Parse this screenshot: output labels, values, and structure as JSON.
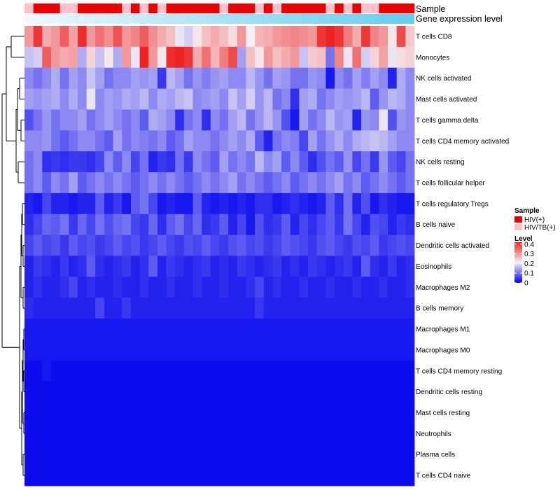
{
  "chart_data": {
    "type": "heatmap",
    "annotation_labels": {
      "sample": "Sample",
      "gene_expression": "Gene expression level"
    },
    "sample_legend": {
      "title": "Sample",
      "entries": [
        {
          "label": "HIV(+)",
          "color": "#ee0000"
        },
        {
          "label": "HIV/TB(+)",
          "color": "#ffc0cb"
        }
      ]
    },
    "level_legend": {
      "title": "Level",
      "ticks": [
        "0.4",
        "0.3",
        "0.2",
        "0.1",
        "0"
      ],
      "tick_values": [
        0.4,
        0.3,
        0.2,
        0.1,
        0
      ],
      "range": [
        0,
        0.42
      ],
      "colors": {
        "low": "#0000ee",
        "mid": "#f5f0f5",
        "high": "#ee2222"
      }
    },
    "sample_groups": [
      1,
      0,
      0,
      0,
      1,
      1,
      0,
      0,
      0,
      0,
      0,
      1,
      0,
      1,
      0,
      1,
      0,
      0,
      0,
      0,
      0,
      0,
      1,
      0,
      0,
      0,
      1,
      0,
      1,
      0,
      0,
      0,
      0,
      0,
      1,
      0,
      1,
      0,
      1,
      1,
      0,
      0,
      0,
      0
    ],
    "gene_expression_range": [
      0,
      1
    ],
    "rows": [
      "T cells CD8",
      "Monocytes",
      "NK cells activated",
      "Mast cells activated",
      "T cells gamma delta",
      "T cells CD4 memory activated",
      "NK cells resting",
      "T cells follicular helper",
      "T cells regulatory  Tregs",
      "B cells naive",
      "Dendritic cells activated",
      "Eosinophils",
      "Macrophages M2",
      "B cells memory",
      "Macrophages M1",
      "Macrophages M0",
      "T cells CD4 memory resting",
      "Dendritic cells resting",
      "Mast cells resting",
      "Neutrophils",
      "Plasma cells",
      "T cells CD4 naive"
    ],
    "values": [
      [
        0.3,
        0.4,
        0.28,
        0.3,
        0.36,
        0.29,
        0.41,
        0.3,
        0.34,
        0.31,
        0.37,
        0.3,
        0.32,
        0.36,
        0.31,
        0.28,
        0.26,
        0.2,
        0.18,
        0.22,
        0.26,
        0.28,
        0.26,
        0.23,
        0.3,
        0.21,
        0.27,
        0.28,
        0.3,
        0.31,
        0.32,
        0.31,
        0.3,
        0.4,
        0.42,
        0.4,
        0.33,
        0.28,
        0.4,
        0.32,
        0.3,
        0.22,
        0.38,
        0.25
      ],
      [
        0.17,
        0.18,
        0.36,
        0.3,
        0.28,
        0.29,
        0.15,
        0.24,
        0.17,
        0.22,
        0.15,
        0.3,
        0.2,
        0.42,
        0.3,
        0.22,
        0.41,
        0.42,
        0.4,
        0.28,
        0.34,
        0.27,
        0.33,
        0.38,
        0.14,
        0.26,
        0.22,
        0.3,
        0.26,
        0.28,
        0.3,
        0.17,
        0.25,
        0.26,
        0.1,
        0.32,
        0.2,
        0.34,
        0.18,
        0.24,
        0.29,
        0.2,
        0.23,
        0.24
      ],
      [
        0.12,
        0.1,
        0.12,
        0.15,
        0.1,
        0.14,
        0.12,
        0.17,
        0.14,
        0.1,
        0.12,
        0.12,
        0.14,
        0.13,
        0.14,
        0.05,
        0.16,
        0.14,
        0.1,
        0.13,
        0.11,
        0.13,
        0.14,
        0.12,
        0.12,
        0.16,
        0.13,
        0.1,
        0.14,
        0.13,
        0.1,
        0.1,
        0.13,
        0.12,
        0.02,
        0.12,
        0.1,
        0.14,
        0.11,
        0.14,
        0.12,
        0.03,
        0.15,
        0.12
      ],
      [
        0.14,
        0.13,
        0.14,
        0.15,
        0.12,
        0.15,
        0.12,
        0.2,
        0.12,
        0.14,
        0.13,
        0.15,
        0.14,
        0.16,
        0.12,
        0.15,
        0.14,
        0.16,
        0.17,
        0.12,
        0.13,
        0.14,
        0.12,
        0.17,
        0.14,
        0.18,
        0.13,
        0.16,
        0.1,
        0.12,
        0.04,
        0.14,
        0.15,
        0.1,
        0.12,
        0.14,
        0.13,
        0.14,
        0.16,
        0.08,
        0.13,
        0.16,
        0.15,
        0.12
      ],
      [
        0.07,
        0.1,
        0.13,
        0.1,
        0.12,
        0.12,
        0.14,
        0.1,
        0.12,
        0.14,
        0.12,
        0.1,
        0.12,
        0.08,
        0.15,
        0.14,
        0.12,
        0.04,
        0.1,
        0.12,
        0.04,
        0.12,
        0.1,
        0.14,
        0.16,
        0.1,
        0.13,
        0.16,
        0.13,
        0.07,
        0.02,
        0.14,
        0.1,
        0.12,
        0.16,
        0.13,
        0.14,
        0.03,
        0.13,
        0.12,
        0.2,
        0.07,
        0.13,
        0.12
      ],
      [
        0.12,
        0.12,
        0.13,
        0.1,
        0.08,
        0.1,
        0.12,
        0.12,
        0.1,
        0.08,
        0.14,
        0.1,
        0.12,
        0.11,
        0.1,
        0.12,
        0.08,
        0.1,
        0.14,
        0.12,
        0.12,
        0.1,
        0.12,
        0.14,
        0.12,
        0.15,
        0.08,
        0.03,
        0.1,
        0.12,
        0.11,
        0.06,
        0.14,
        0.1,
        0.13,
        0.15,
        0.12,
        0.15,
        0.16,
        0.17,
        0.16,
        0.14,
        0.12,
        0.12
      ],
      [
        0.1,
        0.12,
        0.04,
        0.05,
        0.04,
        0.05,
        0.05,
        0.04,
        0.06,
        0.12,
        0.08,
        0.12,
        0.06,
        0.1,
        0.03,
        0.05,
        0.04,
        0.1,
        0.05,
        0.12,
        0.1,
        0.08,
        0.14,
        0.1,
        0.12,
        0.1,
        0.16,
        0.12,
        0.14,
        0.08,
        0.12,
        0.08,
        0.04,
        0.07,
        0.1,
        0.08,
        0.13,
        0.06,
        0.1,
        0.05,
        0.13,
        0.08,
        0.06,
        0.1
      ],
      [
        0.1,
        0.12,
        0.08,
        0.12,
        0.1,
        0.14,
        0.08,
        0.1,
        0.12,
        0.1,
        0.12,
        0.1,
        0.08,
        0.1,
        0.12,
        0.1,
        0.12,
        0.1,
        0.08,
        0.1,
        0.12,
        0.1,
        0.12,
        0.14,
        0.1,
        0.12,
        0.1,
        0.08,
        0.1,
        0.12,
        0.08,
        0.1,
        0.12,
        0.1,
        0.12,
        0.14,
        0.1,
        0.12,
        0.08,
        0.1,
        0.12,
        0.1,
        0.08,
        0.1
      ],
      [
        0.03,
        0.02,
        0.06,
        0.03,
        0.03,
        0.02,
        0.03,
        0.03,
        0.08,
        0.03,
        0.05,
        0.02,
        0.08,
        0.1,
        0.06,
        0.02,
        0.03,
        0.02,
        0.02,
        0.08,
        0.03,
        0.02,
        0.03,
        0.02,
        0.03,
        0.02,
        0.04,
        0.04,
        0.02,
        0.03,
        0.04,
        0.03,
        0.02,
        0.03,
        0.08,
        0.04,
        0.1,
        0.03,
        0.07,
        0.02,
        0.04,
        0.03,
        0.02,
        0.02
      ],
      [
        0.04,
        0.06,
        0.09,
        0.08,
        0.1,
        0.05,
        0.09,
        0.06,
        0.1,
        0.07,
        0.09,
        0.1,
        0.06,
        0.05,
        0.09,
        0.04,
        0.08,
        0.1,
        0.06,
        0.09,
        0.04,
        0.05,
        0.08,
        0.03,
        0.06,
        0.02,
        0.07,
        0.04,
        0.05,
        0.08,
        0.03,
        0.06,
        0.04,
        0.06,
        0.08,
        0.05,
        0.1,
        0.06,
        0.03,
        0.07,
        0.06,
        0.03,
        0.05,
        0.04
      ],
      [
        0.06,
        0.08,
        0.06,
        0.07,
        0.05,
        0.08,
        0.06,
        0.07,
        0.05,
        0.06,
        0.08,
        0.06,
        0.07,
        0.05,
        0.06,
        0.08,
        0.06,
        0.05,
        0.07,
        0.06,
        0.08,
        0.06,
        0.05,
        0.07,
        0.08,
        0.06,
        0.07,
        0.05,
        0.06,
        0.08,
        0.07,
        0.06,
        0.05,
        0.07,
        0.08,
        0.06,
        0.05,
        0.07,
        0.06,
        0.08,
        0.05,
        0.06,
        0.07,
        0.06
      ],
      [
        0.03,
        0.05,
        0.04,
        0.03,
        0.05,
        0.03,
        0.04,
        0.08,
        0.04,
        0.03,
        0.04,
        0.05,
        0.03,
        0.04,
        0.08,
        0.03,
        0.05,
        0.04,
        0.03,
        0.04,
        0.05,
        0.03,
        0.04,
        0.03,
        0.05,
        0.04,
        0.03,
        0.04,
        0.05,
        0.03,
        0.04,
        0.03,
        0.05,
        0.04,
        0.03,
        0.04,
        0.05,
        0.03,
        0.08,
        0.04,
        0.03,
        0.05,
        0.03,
        0.04
      ],
      [
        0.03,
        0.04,
        0.03,
        0.03,
        0.04,
        0.06,
        0.03,
        0.04,
        0.03,
        0.03,
        0.04,
        0.03,
        0.03,
        0.04,
        0.03,
        0.03,
        0.04,
        0.03,
        0.03,
        0.04,
        0.03,
        0.03,
        0.04,
        0.03,
        0.03,
        0.04,
        0.06,
        0.03,
        0.04,
        0.03,
        0.03,
        0.04,
        0.03,
        0.03,
        0.04,
        0.03,
        0.03,
        0.04,
        0.03,
        0.03,
        0.04,
        0.03,
        0.03,
        0.04
      ],
      [
        0.04,
        0.03,
        0.03,
        0.03,
        0.03,
        0.03,
        0.03,
        0.03,
        0.06,
        0.03,
        0.03,
        0.05,
        0.03,
        0.03,
        0.03,
        0.03,
        0.03,
        0.03,
        0.03,
        0.03,
        0.03,
        0.03,
        0.03,
        0.03,
        0.03,
        0.03,
        0.05,
        0.03,
        0.03,
        0.03,
        0.03,
        0.03,
        0.03,
        0.03,
        0.03,
        0.03,
        0.03,
        0.03,
        0.03,
        0.03,
        0.03,
        0.03,
        0.03,
        0.03
      ],
      [
        0.02,
        0.02,
        0.02,
        0.02,
        0.02,
        0.02,
        0.02,
        0.02,
        0.02,
        0.02,
        0.02,
        0.02,
        0.02,
        0.02,
        0.02,
        0.02,
        0.02,
        0.02,
        0.02,
        0.02,
        0.02,
        0.02,
        0.02,
        0.02,
        0.02,
        0.02,
        0.02,
        0.02,
        0.02,
        0.02,
        0.02,
        0.02,
        0.02,
        0.02,
        0.02,
        0.02,
        0.02,
        0.02,
        0.02,
        0.02,
        0.02,
        0.02,
        0.02,
        0.02
      ],
      [
        0.02,
        0.02,
        0.02,
        0.02,
        0.02,
        0.02,
        0.02,
        0.02,
        0.02,
        0.02,
        0.02,
        0.02,
        0.02,
        0.02,
        0.02,
        0.02,
        0.02,
        0.02,
        0.02,
        0.02,
        0.02,
        0.02,
        0.02,
        0.02,
        0.02,
        0.02,
        0.02,
        0.02,
        0.02,
        0.02,
        0.02,
        0.02,
        0.02,
        0.02,
        0.02,
        0.02,
        0.02,
        0.02,
        0.02,
        0.02,
        0.02,
        0.02,
        0.02,
        0.02
      ],
      [
        0.01,
        0.01,
        0.02,
        0.01,
        0.01,
        0.01,
        0.01,
        0.01,
        0.01,
        0.01,
        0.01,
        0.01,
        0.01,
        0.01,
        0.01,
        0.01,
        0.01,
        0.01,
        0.01,
        0.01,
        0.01,
        0.01,
        0.01,
        0.01,
        0.01,
        0.01,
        0.01,
        0.01,
        0.01,
        0.01,
        0.01,
        0.01,
        0.01,
        0.01,
        0.01,
        0.01,
        0.01,
        0.01,
        0.01,
        0.01,
        0.01,
        0.01,
        0.01,
        0.01
      ],
      [
        0.01,
        0.01,
        0.01,
        0.01,
        0.01,
        0.01,
        0.01,
        0.01,
        0.01,
        0.01,
        0.01,
        0.01,
        0.01,
        0.01,
        0.01,
        0.01,
        0.01,
        0.01,
        0.01,
        0.01,
        0.01,
        0.01,
        0.01,
        0.01,
        0.01,
        0.01,
        0.01,
        0.01,
        0.01,
        0.01,
        0.01,
        0.01,
        0.01,
        0.01,
        0.01,
        0.01,
        0.01,
        0.01,
        0.01,
        0.01,
        0.01,
        0.01,
        0.01,
        0.01
      ],
      [
        0.01,
        0.01,
        0.01,
        0.01,
        0.01,
        0.01,
        0.01,
        0.01,
        0.01,
        0.01,
        0.01,
        0.01,
        0.01,
        0.01,
        0.01,
        0.01,
        0.01,
        0.01,
        0.01,
        0.01,
        0.01,
        0.01,
        0.01,
        0.01,
        0.01,
        0.01,
        0.01,
        0.01,
        0.01,
        0.01,
        0.01,
        0.01,
        0.01,
        0.01,
        0.01,
        0.01,
        0.01,
        0.01,
        0.01,
        0.01,
        0.01,
        0.01,
        0.01,
        0.01
      ],
      [
        0.01,
        0.01,
        0.01,
        0.01,
        0.01,
        0.01,
        0.01,
        0.01,
        0.01,
        0.01,
        0.01,
        0.01,
        0.01,
        0.01,
        0.01,
        0.01,
        0.01,
        0.01,
        0.01,
        0.01,
        0.01,
        0.01,
        0.01,
        0.01,
        0.01,
        0.01,
        0.01,
        0.01,
        0.01,
        0.01,
        0.01,
        0.01,
        0.01,
        0.01,
        0.01,
        0.01,
        0.01,
        0.01,
        0.01,
        0.01,
        0.01,
        0.01,
        0.01,
        0.01
      ],
      [
        0.01,
        0.01,
        0.01,
        0.01,
        0.01,
        0.01,
        0.01,
        0.01,
        0.01,
        0.01,
        0.01,
        0.01,
        0.01,
        0.01,
        0.01,
        0.01,
        0.01,
        0.01,
        0.01,
        0.01,
        0.01,
        0.01,
        0.01,
        0.01,
        0.01,
        0.01,
        0.01,
        0.01,
        0.01,
        0.01,
        0.01,
        0.01,
        0.01,
        0.01,
        0.01,
        0.01,
        0.01,
        0.01,
        0.01,
        0.01,
        0.01,
        0.01,
        0.01,
        0.01
      ],
      [
        0.01,
        0.01,
        0.01,
        0.01,
        0.01,
        0.01,
        0.01,
        0.01,
        0.01,
        0.01,
        0.01,
        0.01,
        0.01,
        0.01,
        0.01,
        0.01,
        0.01,
        0.01,
        0.01,
        0.01,
        0.01,
        0.01,
        0.01,
        0.01,
        0.01,
        0.01,
        0.01,
        0.01,
        0.01,
        0.01,
        0.01,
        0.01,
        0.01,
        0.01,
        0.01,
        0.01,
        0.01,
        0.01,
        0.01,
        0.01,
        0.01,
        0.01,
        0.01,
        0.01
      ]
    ]
  }
}
